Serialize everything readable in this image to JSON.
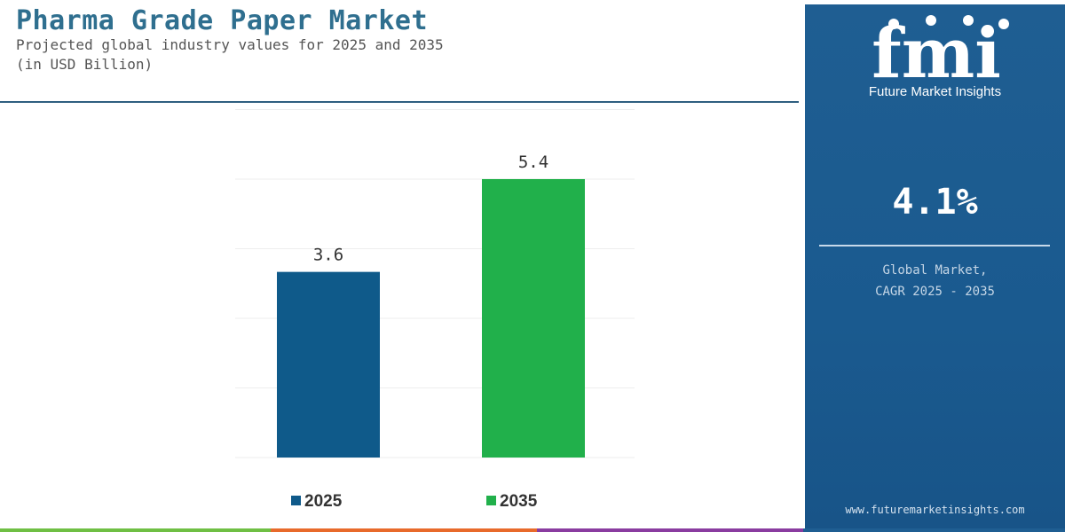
{
  "header": {
    "title": "Pharma Grade Paper Market",
    "subtitle_line1": "Projected global industry values for 2025 and 2035",
    "subtitle_line2": "(in USD Billion)"
  },
  "chart_data": {
    "type": "bar",
    "title": "Pharma Grade Paper Market",
    "subtitle": "Projected global industry values for 2025 and 2035 (in USD Billion)",
    "categories": [
      "2025",
      "2035"
    ],
    "values": [
      3.6,
      5.4
    ],
    "value_labels": [
      "3.6",
      "5.4"
    ],
    "colors": [
      "#0f5a8a",
      "#21b04b"
    ],
    "legend": [
      {
        "label": "2025",
        "color": "#0f5a8a"
      },
      {
        "label": "2035",
        "color": "#21b04b"
      }
    ],
    "legend_position": "bottom",
    "ylim": [
      0,
      6.5
    ],
    "grid": true
  },
  "panel": {
    "logo_text": "fmi",
    "logo_subtext": "Future Market Insights",
    "cagr_value": "4.1%",
    "cagr_label_line1": "Global Market,",
    "cagr_label_line2": "CAGR 2025 - 2035",
    "website": "www.futuremarketinsights.com"
  },
  "colors": {
    "panel_bg": "#1f5e92",
    "title": "#2f6f8f",
    "strip": [
      "#6fbf44",
      "#e86a2b",
      "#8a3ca0",
      "#1f5e92"
    ]
  }
}
